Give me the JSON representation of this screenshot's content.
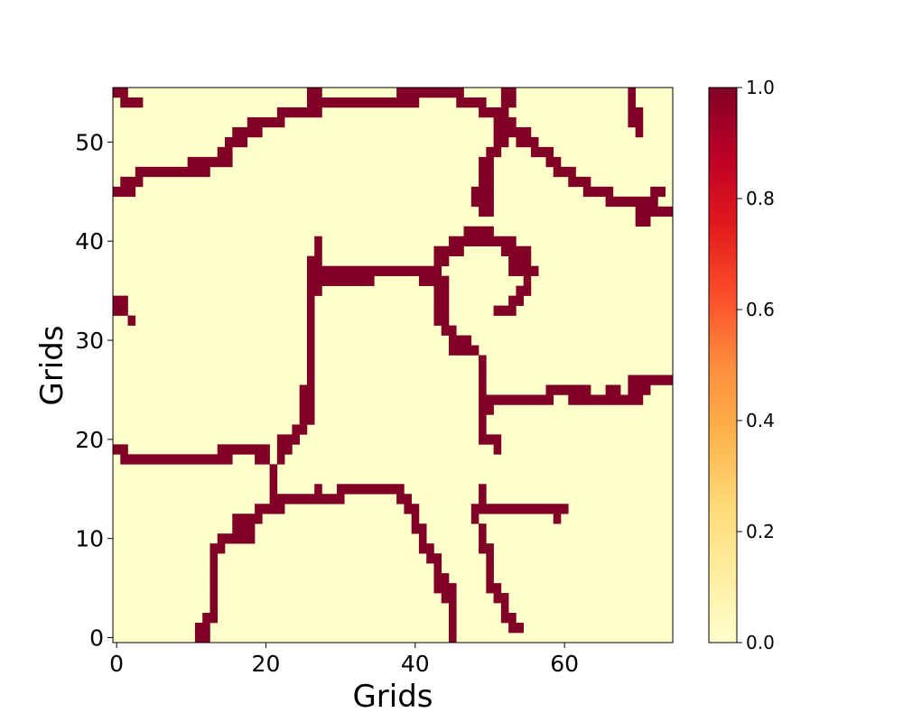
{
  "chart_data": {
    "type": "heatmap",
    "title": "",
    "xlabel": "Grids",
    "ylabel": "Grids",
    "xlim": [
      -0.5,
      74.5
    ],
    "ylim": [
      -0.5,
      55.5
    ],
    "xticks": [
      0,
      20,
      40,
      60
    ],
    "yticks": [
      0,
      10,
      20,
      30,
      40,
      50
    ],
    "grid": false,
    "colorbar": {
      "vmin": 0.0,
      "vmax": 1.0,
      "ticks": [
        "0.0",
        "0.2",
        "0.4",
        "0.6",
        "0.8",
        "1.0"
      ],
      "colormap": "YlOrRd",
      "colors": [
        "#ffffcc",
        "#ffeda0",
        "#fed976",
        "#feb24c",
        "#fd8d3c",
        "#fc4e2a",
        "#e31a1c",
        "#bd0026",
        "#800026"
      ]
    },
    "value_colors": {
      "0": "#ffffcc",
      "1": "#800026"
    },
    "description": "Binary grid, value 1 cells listed as y: x-ranges",
    "cells_value_1": {
      "55": [
        [
          0,
          1
        ],
        [
          26,
          27
        ],
        [
          38,
          46
        ],
        [
          52,
          53
        ],
        [
          69,
          69
        ]
      ],
      "54": [
        [
          1,
          3
        ],
        [
          26,
          27
        ],
        [
          28,
          40
        ],
        [
          46,
          49
        ],
        [
          52,
          53
        ],
        [
          69,
          69
        ]
      ],
      "53": [
        [
          22,
          27
        ],
        [
          49,
          52
        ],
        [
          69,
          70
        ]
      ],
      "52": [
        [
          18,
          22
        ],
        [
          51,
          53
        ],
        [
          69,
          70
        ]
      ],
      "51": [
        [
          16,
          19
        ],
        [
          51,
          55
        ],
        [
          70,
          70
        ]
      ],
      "50": [
        [
          15,
          17
        ],
        [
          51,
          52
        ],
        [
          54,
          56
        ]
      ],
      "49": [
        [
          14,
          15
        ],
        [
          50,
          51
        ],
        [
          56,
          58
        ]
      ],
      "48": [
        [
          10,
          15
        ],
        [
          49,
          50
        ],
        [
          58,
          59
        ]
      ],
      "47": [
        [
          3,
          12
        ],
        [
          49,
          50
        ],
        [
          59,
          61
        ]
      ],
      "46": [
        [
          1,
          3
        ],
        [
          49,
          50
        ],
        [
          61,
          63
        ]
      ],
      "45": [
        [
          0,
          2
        ],
        [
          48,
          50
        ],
        [
          63,
          66
        ],
        [
          72,
          73
        ]
      ],
      "44": [
        [
          48,
          50
        ],
        [
          66,
          72
        ]
      ],
      "43": [
        [
          49,
          50
        ],
        [
          70,
          74
        ]
      ],
      "42": [
        [
          70,
          71
        ]
      ],
      "41": [
        [
          47,
          50
        ]
      ],
      "40": [
        [
          27,
          27
        ],
        [
          45,
          53
        ]
      ],
      "39": [
        [
          27,
          27
        ],
        [
          43,
          46
        ],
        [
          52,
          55
        ]
      ],
      "38": [
        [
          26,
          27
        ],
        [
          43,
          44
        ],
        [
          53,
          55
        ]
      ],
      "37": [
        [
          26,
          43
        ],
        [
          53,
          56
        ]
      ],
      "36": [
        [
          26,
          34
        ],
        [
          41,
          44
        ],
        [
          55,
          55
        ]
      ],
      "35": [
        [
          26,
          27
        ],
        [
          43,
          44
        ],
        [
          54,
          55
        ]
      ],
      "34": [
        [
          0,
          1
        ],
        [
          26,
          26
        ],
        [
          43,
          44
        ],
        [
          53,
          54
        ]
      ],
      "33": [
        [
          0,
          1
        ],
        [
          26,
          26
        ],
        [
          43,
          44
        ],
        [
          51,
          53
        ]
      ],
      "32": [
        [
          2,
          2
        ],
        [
          26,
          26
        ],
        [
          43,
          44
        ]
      ],
      "31": [
        [
          26,
          26
        ],
        [
          44,
          45
        ]
      ],
      "30": [
        [
          26,
          26
        ],
        [
          45,
          47
        ]
      ],
      "29": [
        [
          26,
          26
        ],
        [
          45,
          46
        ],
        [
          47,
          48
        ]
      ],
      "28": [
        [
          26,
          26
        ],
        [
          49,
          49
        ]
      ],
      "27": [
        [
          26,
          26
        ],
        [
          49,
          49
        ]
      ],
      "26": [
        [
          26,
          26
        ],
        [
          49,
          49
        ],
        [
          69,
          74
        ]
      ],
      "25": [
        [
          25,
          26
        ],
        [
          49,
          49
        ],
        [
          58,
          63
        ],
        [
          66,
          67
        ],
        [
          69,
          71
        ]
      ],
      "24": [
        [
          25,
          26
        ],
        [
          49,
          58
        ],
        [
          61,
          70
        ]
      ],
      "23": [
        [
          25,
          26
        ],
        [
          49,
          50
        ]
      ],
      "22": [
        [
          25,
          26
        ],
        [
          49,
          49
        ]
      ],
      "21": [
        [
          24,
          25
        ],
        [
          49,
          49
        ]
      ],
      "20": [
        [
          22,
          24
        ],
        [
          49,
          51
        ]
      ],
      "19": [
        [
          0,
          1
        ],
        [
          14,
          20
        ],
        [
          22,
          23
        ],
        [
          51,
          51
        ]
      ],
      "18": [
        [
          1,
          15
        ],
        [
          19,
          20
        ],
        [
          22,
          22
        ]
      ],
      "17": [
        [
          21,
          21
        ]
      ],
      "16": [
        [
          21,
          21
        ]
      ],
      "15": [
        [
          21,
          21
        ],
        [
          27,
          27
        ],
        [
          30,
          38
        ],
        [
          49,
          49
        ]
      ],
      "14": [
        [
          21,
          30
        ],
        [
          38,
          39
        ],
        [
          49,
          49
        ]
      ],
      "13": [
        [
          19,
          22
        ],
        [
          39,
          40
        ],
        [
          48,
          60
        ]
      ],
      "12": [
        [
          16,
          19
        ],
        [
          40,
          40
        ],
        [
          48,
          48
        ],
        [
          59,
          59
        ]
      ],
      "11": [
        [
          16,
          18
        ],
        [
          40,
          41
        ],
        [
          49,
          49
        ]
      ],
      "10": [
        [
          14,
          18
        ],
        [
          41,
          41
        ],
        [
          49,
          49
        ]
      ],
      "9": [
        [
          13,
          14
        ],
        [
          41,
          42
        ],
        [
          49,
          50
        ]
      ],
      "8": [
        [
          13,
          13
        ],
        [
          42,
          43
        ],
        [
          50,
          50
        ]
      ],
      "7": [
        [
          13,
          13
        ],
        [
          43,
          43
        ],
        [
          50,
          50
        ]
      ],
      "6": [
        [
          13,
          13
        ],
        [
          43,
          44
        ],
        [
          50,
          50
        ]
      ],
      "5": [
        [
          13,
          13
        ],
        [
          43,
          45
        ],
        [
          50,
          51
        ]
      ],
      "4": [
        [
          13,
          13
        ],
        [
          44,
          45
        ],
        [
          51,
          52
        ]
      ],
      "3": [
        [
          13,
          13
        ],
        [
          45,
          45
        ],
        [
          52,
          52
        ]
      ],
      "2": [
        [
          12,
          13
        ],
        [
          45,
          45
        ],
        [
          52,
          53
        ]
      ],
      "1": [
        [
          11,
          12
        ],
        [
          45,
          45
        ],
        [
          53,
          54
        ]
      ],
      "0": [
        [
          11,
          12
        ],
        [
          45,
          45
        ]
      ]
    }
  }
}
